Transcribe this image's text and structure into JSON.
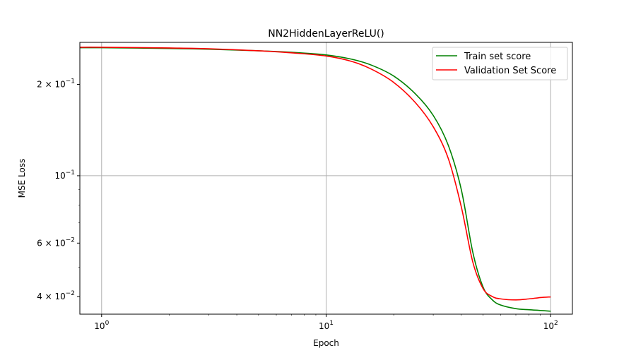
{
  "chart_data": {
    "type": "line",
    "title": "NN2HiddenLayerReLU()",
    "xlabel": "Epoch",
    "ylabel": "MSE Loss",
    "xscale": "log",
    "yscale": "log",
    "xlim": [
      0.8,
      125
    ],
    "ylim": [
      0.035,
      0.275
    ],
    "grid": true,
    "legend": "top-right",
    "x_ticks": [
      {
        "value": 1,
        "base": "10",
        "exp": "0"
      },
      {
        "value": 10,
        "base": "10",
        "exp": "1"
      },
      {
        "value": 100,
        "base": "10",
        "exp": "2"
      }
    ],
    "y_ticks": [
      {
        "value": 0.04,
        "mant": "4",
        "exp": "−2"
      },
      {
        "value": 0.06,
        "mant": "6",
        "exp": "−2"
      },
      {
        "value": 0.1,
        "mant": "",
        "exp": "−1"
      },
      {
        "value": 0.2,
        "mant": "2",
        "exp": "−1"
      }
    ],
    "series": [
      {
        "name": "Train set score",
        "color": "#008000",
        "points": [
          [
            0.8,
            0.264
          ],
          [
            1,
            0.264
          ],
          [
            2,
            0.2625
          ],
          [
            3,
            0.261
          ],
          [
            5,
            0.258
          ],
          [
            7,
            0.255
          ],
          [
            10,
            0.25
          ],
          [
            13,
            0.242
          ],
          [
            16,
            0.231
          ],
          [
            20,
            0.213
          ],
          [
            25,
            0.186
          ],
          [
            30,
            0.158
          ],
          [
            35,
            0.126
          ],
          [
            40,
            0.09
          ],
          [
            45,
            0.056
          ],
          [
            50,
            0.043
          ],
          [
            55,
            0.039
          ],
          [
            60,
            0.0375
          ],
          [
            70,
            0.0365
          ],
          [
            80,
            0.0362
          ],
          [
            90,
            0.036
          ],
          [
            100,
            0.0358
          ]
        ]
      },
      {
        "name": "Validation Set Score",
        "color": "#ff0000",
        "points": [
          [
            0.8,
            0.265
          ],
          [
            1,
            0.265
          ],
          [
            2,
            0.2635
          ],
          [
            3,
            0.262
          ],
          [
            5,
            0.258
          ],
          [
            7,
            0.254
          ],
          [
            10,
            0.248
          ],
          [
            13,
            0.238
          ],
          [
            16,
            0.224
          ],
          [
            20,
            0.203
          ],
          [
            25,
            0.174
          ],
          [
            30,
            0.145
          ],
          [
            35,
            0.114
          ],
          [
            40,
            0.079
          ],
          [
            45,
            0.052
          ],
          [
            50,
            0.0425
          ],
          [
            55,
            0.04
          ],
          [
            60,
            0.0393
          ],
          [
            70,
            0.039
          ],
          [
            80,
            0.0393
          ],
          [
            90,
            0.0397
          ],
          [
            100,
            0.0399
          ]
        ]
      }
    ]
  }
}
